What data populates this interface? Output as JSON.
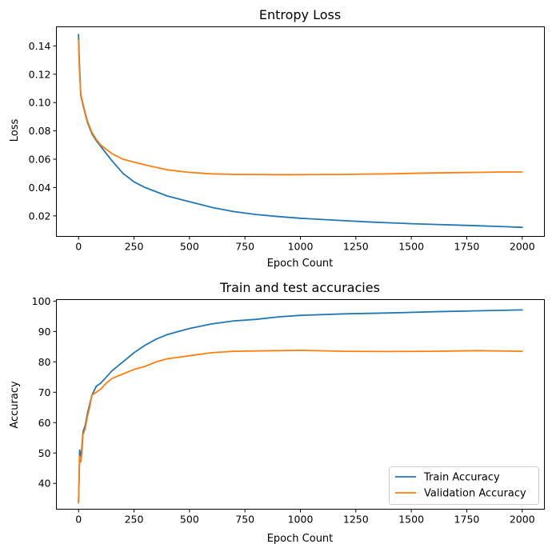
{
  "chart_data": [
    {
      "type": "line",
      "title": "Entropy Loss",
      "xlabel": "Epoch Count",
      "ylabel": "Loss",
      "xlim": [
        -100,
        2100
      ],
      "ylim": [
        0.0055,
        0.1535
      ],
      "xticks": [
        0,
        250,
        500,
        750,
        1000,
        1250,
        1500,
        1750,
        2000
      ],
      "xtick_labels": [
        "0",
        "250",
        "500",
        "750",
        "1000",
        "1250",
        "1500",
        "1750",
        "2000"
      ],
      "yticks": [
        0.02,
        0.04,
        0.06,
        0.08,
        0.1,
        0.12,
        0.14
      ],
      "ytick_labels": [
        "0.02",
        "0.04",
        "0.06",
        "0.08",
        "0.10",
        "0.12",
        "0.14"
      ],
      "grid": false,
      "legend": "none",
      "series": [
        {
          "color": "#1f77b4",
          "x": [
            0,
            3,
            10,
            20,
            40,
            60,
            80,
            100,
            150,
            200,
            250,
            300,
            400,
            500,
            600,
            700,
            800,
            900,
            1000,
            1100,
            1200,
            1300,
            1400,
            1500,
            1600,
            1700,
            1800,
            1900,
            2000
          ],
          "y": [
            0.148,
            0.13,
            0.105,
            0.098,
            0.086,
            0.078,
            0.073,
            0.069,
            0.059,
            0.05,
            0.044,
            0.04,
            0.034,
            0.03,
            0.026,
            0.023,
            0.021,
            0.0195,
            0.0183,
            0.0174,
            0.0166,
            0.0158,
            0.0151,
            0.0145,
            0.014,
            0.0135,
            0.013,
            0.0125,
            0.0119
          ]
        },
        {
          "color": "#ff7f0e",
          "x": [
            0,
            3,
            10,
            20,
            40,
            60,
            80,
            100,
            150,
            200,
            250,
            300,
            400,
            500,
            600,
            700,
            800,
            900,
            1000,
            1100,
            1200,
            1300,
            1400,
            1500,
            1600,
            1700,
            1800,
            1900,
            2000
          ],
          "y": [
            0.144,
            0.125,
            0.106,
            0.099,
            0.087,
            0.079,
            0.074,
            0.07,
            0.064,
            0.06,
            0.058,
            0.056,
            0.0525,
            0.0507,
            0.0497,
            0.0493,
            0.0492,
            0.0491,
            0.0491,
            0.0492,
            0.0493,
            0.0495,
            0.0497,
            0.05,
            0.0503,
            0.0505,
            0.0507,
            0.051,
            0.051
          ]
        }
      ]
    },
    {
      "type": "line",
      "title": "Train and test accuracies",
      "xlabel": "Epoch Count",
      "ylabel": "Accuracy",
      "xlim": [
        -100,
        2100
      ],
      "ylim": [
        31.5,
        100.5
      ],
      "xticks": [
        0,
        250,
        500,
        750,
        1000,
        1250,
        1500,
        1750,
        2000
      ],
      "xtick_labels": [
        "0",
        "250",
        "500",
        "750",
        "1000",
        "1250",
        "1500",
        "1750",
        "2000"
      ],
      "yticks": [
        40,
        50,
        60,
        70,
        80,
        90,
        100
      ],
      "ytick_labels": [
        "40",
        "50",
        "60",
        "70",
        "80",
        "90",
        "100"
      ],
      "grid": false,
      "legend": "lower-right",
      "series": [
        {
          "name": "Train Accuracy",
          "color": "#1f77b4",
          "x": [
            0,
            5,
            10,
            15,
            20,
            30,
            40,
            50,
            60,
            80,
            100,
            125,
            150,
            200,
            250,
            300,
            350,
            400,
            450,
            500,
            600,
            700,
            800,
            900,
            1000,
            1200,
            1400,
            1600,
            1800,
            2000
          ],
          "y": [
            34,
            51,
            48,
            52,
            57,
            59,
            63,
            66,
            69,
            72,
            73,
            75,
            77,
            80,
            83,
            85.5,
            87.5,
            89,
            90,
            91,
            92.5,
            93.5,
            94,
            94.8,
            95.3,
            95.8,
            96.1,
            96.5,
            96.8,
            97.1
          ]
        },
        {
          "name": "Validation Accuracy",
          "color": "#ff7f0e",
          "x": [
            0,
            5,
            10,
            15,
            20,
            30,
            40,
            50,
            60,
            80,
            100,
            125,
            150,
            200,
            250,
            300,
            350,
            400,
            450,
            500,
            600,
            700,
            800,
            900,
            1000,
            1200,
            1400,
            1600,
            1800,
            2000
          ],
          "y": [
            33.5,
            49,
            47,
            50,
            56,
            58,
            62,
            65,
            69,
            70,
            71,
            73,
            74.5,
            76,
            77.5,
            78.5,
            80,
            81,
            81.5,
            82,
            83,
            83.5,
            83.6,
            83.7,
            83.8,
            83.5,
            83.4,
            83.5,
            83.7,
            83.5
          ]
        }
      ]
    }
  ]
}
